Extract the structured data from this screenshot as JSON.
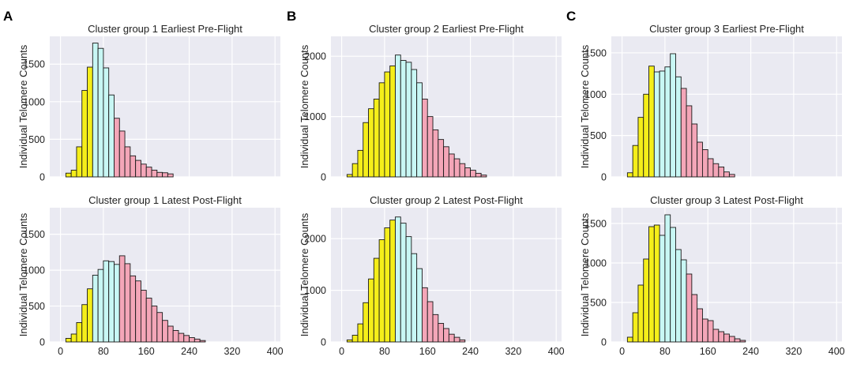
{
  "colors": {
    "panel_bg": "#eaeaf2",
    "grid": "#ffffff",
    "short": "#f5ee1a",
    "mid": "#c8f7f4",
    "long": "#f4a6b8",
    "edge": "#1a1a1a"
  },
  "panel_letters": [
    "A",
    "B",
    "C"
  ],
  "xticks": [
    0,
    80,
    160,
    240,
    320,
    400
  ],
  "ylabel": "Individual Telomere Counts",
  "chart_data": [
    {
      "type": "bar",
      "title": "Cluster group 1 Earliest Pre-Flight",
      "ylabel": "Individual Telomere Counts",
      "xlim": [
        -20,
        410
      ],
      "ylim": [
        0,
        1870
      ],
      "yticks": [
        0,
        500,
        1000,
        1500
      ],
      "bin_start": 10,
      "bin_width": 10,
      "values": [
        50,
        90,
        400,
        1150,
        1460,
        1780,
        1710,
        1450,
        1090,
        780,
        610,
        400,
        280,
        220,
        170,
        130,
        90,
        60,
        55,
        40
      ],
      "colors": [
        "short",
        "short",
        "short",
        "short",
        "short",
        "mid",
        "mid",
        "mid",
        "mid",
        "long",
        "long",
        "long",
        "long",
        "long",
        "long",
        "long",
        "long",
        "long",
        "long",
        "long"
      ]
    },
    {
      "type": "bar",
      "title": "Cluster group 2 Earliest Pre-Flight",
      "ylabel": "Individual Telomere Counts",
      "xlim": [
        -20,
        410
      ],
      "ylim": [
        0,
        2330
      ],
      "yticks": [
        0,
        1000,
        2000
      ],
      "bin_start": 10,
      "bin_width": 10,
      "values": [
        40,
        220,
        440,
        900,
        1130,
        1290,
        1560,
        1740,
        1840,
        2020,
        1930,
        1900,
        1780,
        1560,
        1290,
        1000,
        780,
        620,
        500,
        380,
        300,
        220,
        150,
        110,
        60,
        30
      ],
      "colors": [
        "short",
        "short",
        "short",
        "short",
        "short",
        "short",
        "short",
        "short",
        "short",
        "mid",
        "mid",
        "mid",
        "mid",
        "mid",
        "long",
        "long",
        "long",
        "long",
        "long",
        "long",
        "long",
        "long",
        "long",
        "long",
        "long",
        "long"
      ]
    },
    {
      "type": "bar",
      "title": "Cluster group 3 Earliest Pre-Flight",
      "ylabel": "Individual Telomere Counts",
      "xlim": [
        -20,
        410
      ],
      "ylim": [
        0,
        1700
      ],
      "yticks": [
        0,
        500,
        1000,
        1500
      ],
      "bin_start": 10,
      "bin_width": 10,
      "values": [
        50,
        380,
        720,
        1000,
        1340,
        1270,
        1280,
        1330,
        1490,
        1210,
        1070,
        860,
        640,
        420,
        330,
        220,
        160,
        120,
        60,
        30
      ],
      "colors": [
        "short",
        "short",
        "short",
        "short",
        "short",
        "mid",
        "mid",
        "mid",
        "mid",
        "mid",
        "long",
        "long",
        "long",
        "long",
        "long",
        "long",
        "long",
        "long",
        "long",
        "long"
      ]
    },
    {
      "type": "bar",
      "title": "Cluster group 1 Latest Post-Flight",
      "ylabel": "Individual Telomere Counts",
      "xlim": [
        -20,
        410
      ],
      "ylim": [
        0,
        1870
      ],
      "yticks": [
        0,
        500,
        1000,
        1500
      ],
      "bin_start": 10,
      "bin_width": 10,
      "values": [
        50,
        110,
        270,
        520,
        740,
        930,
        1010,
        1130,
        1120,
        1080,
        1200,
        1090,
        920,
        850,
        720,
        610,
        500,
        410,
        300,
        220,
        160,
        120,
        90,
        60,
        40,
        20
      ],
      "colors": [
        "short",
        "short",
        "short",
        "short",
        "short",
        "mid",
        "mid",
        "mid",
        "mid",
        "mid",
        "long",
        "long",
        "long",
        "long",
        "long",
        "long",
        "long",
        "long",
        "long",
        "long",
        "long",
        "long",
        "long",
        "long",
        "long",
        "long"
      ]
    },
    {
      "type": "bar",
      "title": "Cluster group 2 Latest Post-Flight",
      "ylabel": "Individual Telomere Counts",
      "xlim": [
        -20,
        410
      ],
      "ylim": [
        0,
        2600
      ],
      "yticks": [
        0,
        1000,
        2000
      ],
      "bin_start": 10,
      "bin_width": 10,
      "values": [
        40,
        130,
        350,
        760,
        1220,
        1620,
        1980,
        2210,
        2360,
        2420,
        2300,
        2040,
        1710,
        1420,
        1050,
        780,
        530,
        360,
        260,
        150,
        90,
        40
      ],
      "colors": [
        "short",
        "short",
        "short",
        "short",
        "short",
        "short",
        "short",
        "short",
        "short",
        "mid",
        "mid",
        "mid",
        "mid",
        "mid",
        "long",
        "long",
        "long",
        "long",
        "long",
        "long",
        "long",
        "long"
      ]
    },
    {
      "type": "bar",
      "title": "Cluster group 3 Latest Post-Flight",
      "ylabel": "Individual Telomere Counts",
      "xlim": [
        -20,
        410
      ],
      "ylim": [
        0,
        1700
      ],
      "yticks": [
        0,
        500,
        1000,
        1500
      ],
      "bin_start": 10,
      "bin_width": 10,
      "values": [
        60,
        370,
        720,
        1050,
        1460,
        1480,
        1350,
        1610,
        1450,
        1170,
        1040,
        860,
        600,
        420,
        290,
        270,
        160,
        130,
        100,
        70,
        40,
        20
      ],
      "colors": [
        "short",
        "short",
        "short",
        "short",
        "short",
        "short",
        "mid",
        "mid",
        "mid",
        "mid",
        "mid",
        "long",
        "long",
        "long",
        "long",
        "long",
        "long",
        "long",
        "long",
        "long",
        "long",
        "long"
      ]
    }
  ]
}
